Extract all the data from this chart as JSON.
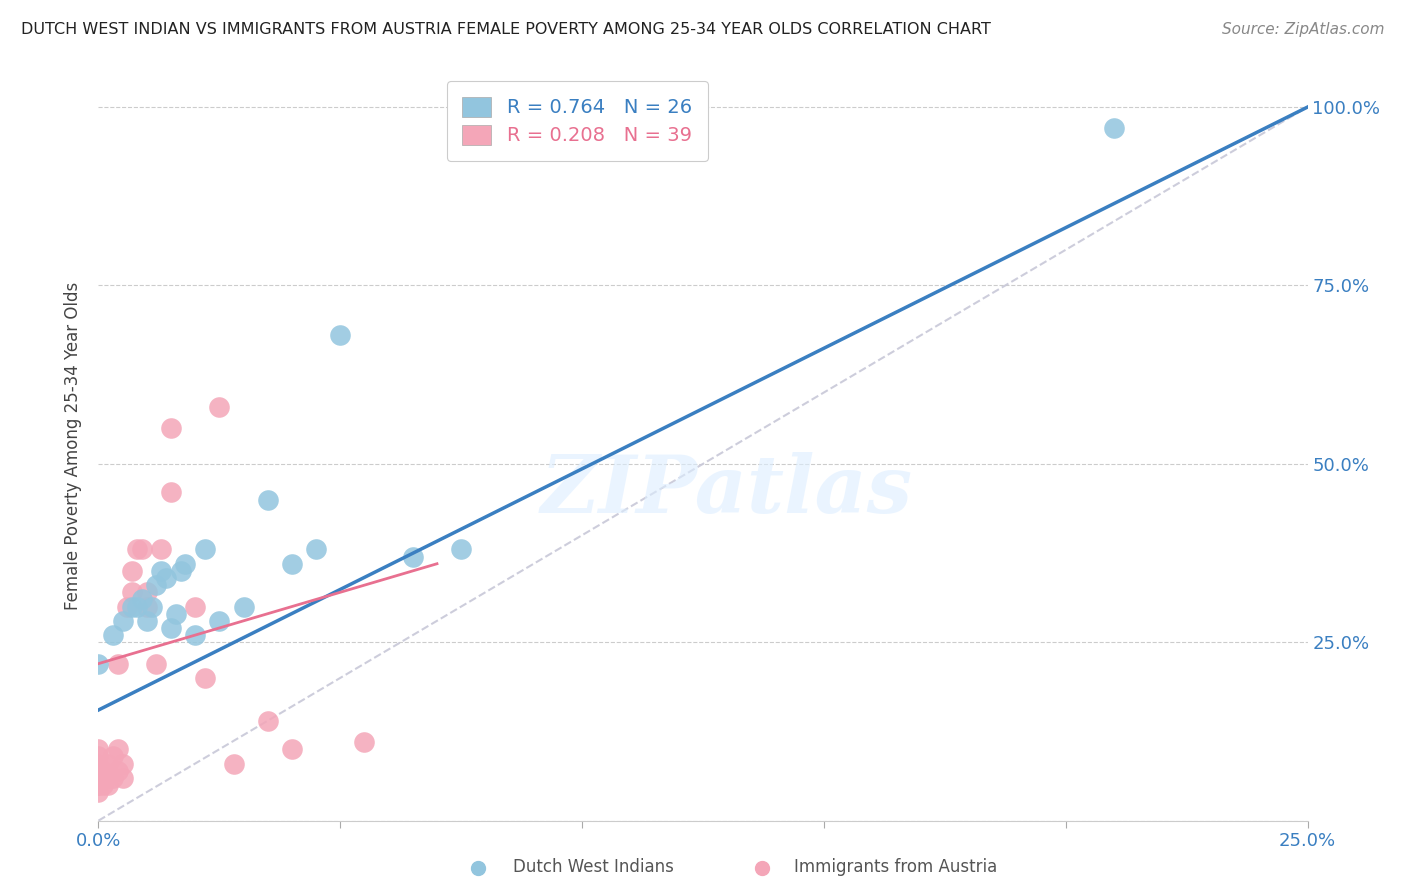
{
  "title": "DUTCH WEST INDIAN VS IMMIGRANTS FROM AUSTRIA FEMALE POVERTY AMONG 25-34 YEAR OLDS CORRELATION CHART",
  "source": "Source: ZipAtlas.com",
  "ylabel": "Female Poverty Among 25-34 Year Olds",
  "xlim": [
    0,
    0.25
  ],
  "ylim": [
    0,
    1.05
  ],
  "y_tick_positions": [
    0.0,
    0.25,
    0.5,
    0.75,
    1.0
  ],
  "y_tick_labels": [
    "",
    "25.0%",
    "50.0%",
    "75.0%",
    "100.0%"
  ],
  "x_tick_positions": [
    0.0,
    0.05,
    0.1,
    0.15,
    0.2,
    0.25
  ],
  "x_tick_labels": [
    "0.0%",
    "",
    "",
    "",
    "",
    "25.0%"
  ],
  "blue_R": 0.764,
  "blue_N": 26,
  "pink_R": 0.208,
  "pink_N": 39,
  "blue_color": "#92c5de",
  "pink_color": "#f4a6b8",
  "blue_line_color": "#3a7fc1",
  "dashed_line_color": "#c8c8d8",
  "pink_line_color": "#e87090",
  "watermark": "ZIPatlas",
  "blue_line_x0": 0.0,
  "blue_line_y0": 0.155,
  "blue_line_x1": 0.25,
  "blue_line_y1": 1.0,
  "dashed_line_x0": 0.0,
  "dashed_line_y0": 0.0,
  "dashed_line_x1": 0.25,
  "dashed_line_y1": 1.0,
  "pink_line_x0": 0.0,
  "pink_line_y0": 0.22,
  "pink_line_x1": 0.07,
  "pink_line_y1": 0.36,
  "blue_scatter_x": [
    0.0,
    0.003,
    0.005,
    0.007,
    0.008,
    0.009,
    0.01,
    0.011,
    0.012,
    0.013,
    0.014,
    0.015,
    0.016,
    0.017,
    0.018,
    0.02,
    0.022,
    0.025,
    0.03,
    0.035,
    0.04,
    0.045,
    0.05,
    0.065,
    0.075,
    0.21
  ],
  "blue_scatter_y": [
    0.22,
    0.26,
    0.28,
    0.3,
    0.3,
    0.31,
    0.28,
    0.3,
    0.33,
    0.35,
    0.34,
    0.27,
    0.29,
    0.35,
    0.36,
    0.26,
    0.38,
    0.28,
    0.3,
    0.45,
    0.36,
    0.38,
    0.68,
    0.37,
    0.38,
    0.97
  ],
  "pink_scatter_x": [
    0.0,
    0.0,
    0.0,
    0.0,
    0.0,
    0.0,
    0.0,
    0.0,
    0.0,
    0.001,
    0.001,
    0.001,
    0.002,
    0.002,
    0.003,
    0.003,
    0.004,
    0.004,
    0.004,
    0.005,
    0.005,
    0.006,
    0.007,
    0.007,
    0.008,
    0.009,
    0.01,
    0.01,
    0.012,
    0.013,
    0.015,
    0.015,
    0.02,
    0.022,
    0.025,
    0.028,
    0.035,
    0.04,
    0.055
  ],
  "pink_scatter_y": [
    0.04,
    0.05,
    0.05,
    0.06,
    0.06,
    0.07,
    0.08,
    0.09,
    0.1,
    0.05,
    0.06,
    0.07,
    0.05,
    0.08,
    0.06,
    0.09,
    0.07,
    0.1,
    0.22,
    0.06,
    0.08,
    0.3,
    0.32,
    0.35,
    0.38,
    0.38,
    0.3,
    0.32,
    0.22,
    0.38,
    0.46,
    0.55,
    0.3,
    0.2,
    0.58,
    0.08,
    0.14,
    0.1,
    0.11
  ]
}
